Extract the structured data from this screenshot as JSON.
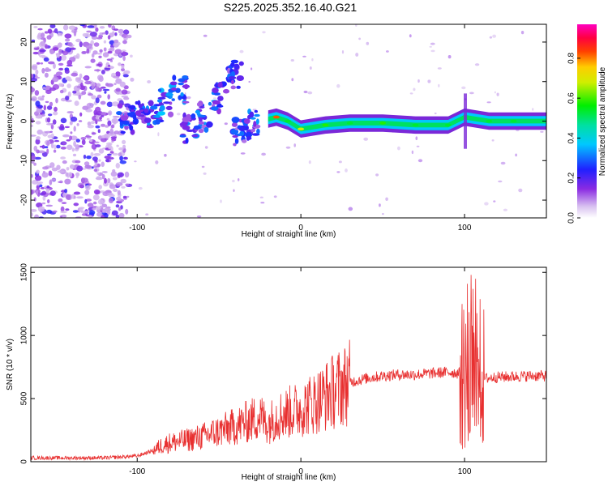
{
  "figure_title": "S225.2025.352.16.40.G21",
  "chart_data": [
    {
      "type": "heatmap",
      "title": "S225.2025.352.16.40.G21",
      "xlabel": "Height of straight line (km)",
      "ylabel": "Frequency (Hz)",
      "xlim": [
        -165,
        150
      ],
      "ylim": [
        -24.5,
        24.5
      ],
      "x_ticks": [
        -100,
        0,
        100
      ],
      "y_ticks": [
        -20,
        -10,
        0,
        10,
        20
      ],
      "colorbar": {
        "label": "Normalized spectral amplitude",
        "range": [
          0.0,
          0.97
        ],
        "ticks": [
          0.0,
          0.2,
          0.4,
          0.6,
          0.8
        ],
        "colormap": "rainbow (white-violet-blue-cyan-green-yellow-red-magenta)"
      },
      "signal_track": [
        {
          "x": -107,
          "freq": 0.5,
          "amp": 0.3
        },
        {
          "x": -100,
          "freq": 1.5,
          "amp": 0.25
        },
        {
          "x": -90,
          "freq": 2.0,
          "amp": 0.28
        },
        {
          "x": -82,
          "freq": 5.0,
          "amp": 0.3
        },
        {
          "x": -74,
          "freq": 8.0,
          "amp": 0.28
        },
        {
          "x": -68,
          "freq": -2.0,
          "amp": 0.25
        },
        {
          "x": -60,
          "freq": 1.0,
          "amp": 0.27
        },
        {
          "x": -50,
          "freq": 6.0,
          "amp": 0.28
        },
        {
          "x": -40,
          "freq": 12.0,
          "amp": 0.25
        },
        {
          "x": -38,
          "freq": -3.0,
          "amp": 0.25
        },
        {
          "x": -30,
          "freq": -1.0,
          "amp": 0.28
        },
        {
          "x": -20,
          "freq": 0.5,
          "amp": 0.45
        },
        {
          "x": -15,
          "freq": 1.0,
          "amp": 0.85
        },
        {
          "x": -8,
          "freq": 0.0,
          "amp": 0.55
        },
        {
          "x": 0,
          "freq": -2.0,
          "amp": 0.7
        },
        {
          "x": 15,
          "freq": -1.0,
          "amp": 0.6
        },
        {
          "x": 30,
          "freq": -0.5,
          "amp": 0.55
        },
        {
          "x": 50,
          "freq": -0.5,
          "amp": 0.6
        },
        {
          "x": 70,
          "freq": -1.0,
          "amp": 0.55
        },
        {
          "x": 90,
          "freq": -1.0,
          "amp": 0.55
        },
        {
          "x": 100,
          "freq": 1.0,
          "amp": 0.4
        },
        {
          "x": 115,
          "freq": 0.0,
          "amp": 0.55
        },
        {
          "x": 130,
          "freq": 0.0,
          "amp": 0.55
        },
        {
          "x": 150,
          "freq": 0.0,
          "amp": 0.5
        }
      ]
    },
    {
      "type": "line",
      "xlabel": "Height of straight line (km)",
      "ylabel": "SNR (10 * v/v)",
      "xlim": [
        -165,
        150
      ],
      "ylim": [
        0,
        1540
      ],
      "x_ticks": [
        -100,
        0,
        100
      ],
      "y_ticks": [
        0,
        500,
        1000,
        1500
      ],
      "color": "#e83030",
      "series": [
        {
          "x": [
            -165,
            -140,
            -120,
            -100,
            -90,
            -85,
            -80,
            -70,
            -60,
            -50,
            -40,
            -30,
            -25,
            -20,
            -15,
            -10,
            -5,
            0,
            10,
            20,
            30,
            40,
            50,
            60,
            70,
            80,
            90,
            97,
            100,
            103,
            105,
            107,
            109,
            112,
            120,
            130,
            140,
            150
          ],
          "y": [
            30,
            30,
            30,
            45,
            90,
            130,
            150,
            170,
            200,
            240,
            280,
            330,
            360,
            300,
            360,
            380,
            400,
            420,
            480,
            560,
            630,
            660,
            680,
            690,
            690,
            700,
            710,
            700,
            700,
            680,
            600,
            400,
            700,
            660,
            670,
            675,
            680,
            680
          ]
        }
      ]
    }
  ]
}
